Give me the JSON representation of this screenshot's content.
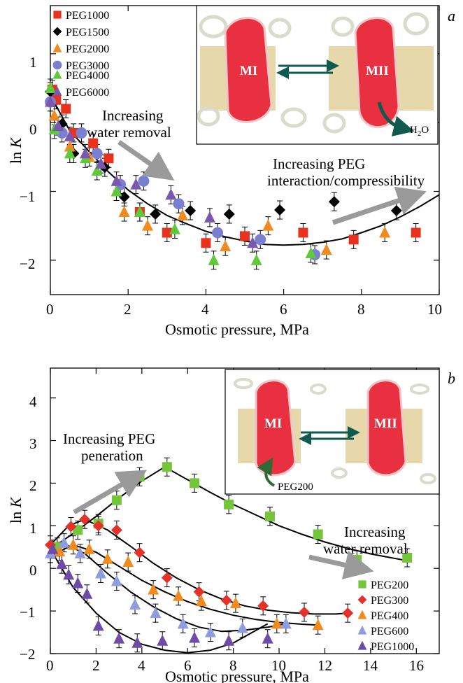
{
  "colors": {
    "red": "#e8321e",
    "black": "#000000",
    "orange": "#f28a1e",
    "purple_blue": "#7b7fd0",
    "green": "#5fc93a",
    "violet": "#7a58b0",
    "lime": "#73c63a",
    "crimson": "#e4312a",
    "sky": "#8f9de0",
    "deep_violet": "#6d4ba6",
    "arrow_grey": "#9a9a9a",
    "arrow_teal": "#0f5a4e",
    "membrane": "#d4b868",
    "protein": "#e83040"
  },
  "chart_data": [
    {
      "panel": "a",
      "type": "scatter",
      "xlabel": "Osmotic pressure, MPa",
      "ylabel": "ln K",
      "xlim": [
        0,
        10
      ],
      "ylim": [
        -2.5,
        1.7
      ],
      "xticks": [
        "0",
        "2",
        "4",
        "6",
        "8",
        "10"
      ],
      "yticks": [
        "1",
        "0",
        "−1",
        "−2"
      ],
      "legend_position": "top-left",
      "series": [
        {
          "name": "PEG1000",
          "marker": "square",
          "color": "#e8321e",
          "points": [
            [
              0.05,
              0.48
            ],
            [
              0.15,
              0.33
            ],
            [
              0.4,
              0.2
            ],
            [
              0.6,
              -0.15
            ],
            [
              1.1,
              -0.3
            ],
            [
              1.5,
              -0.52
            ],
            [
              2.3,
              -1.3
            ],
            [
              3.0,
              -1.6
            ],
            [
              4.0,
              -1.75
            ],
            [
              5.0,
              -1.65
            ],
            [
              6.5,
              -1.6
            ],
            [
              7.8,
              -1.7
            ],
            [
              9.4,
              -1.6
            ]
          ]
        },
        {
          "name": "PEG1500",
          "marker": "diamond",
          "color": "#000000",
          "points": [
            [
              0.0,
              0.45
            ],
            [
              0.3,
              -0.02
            ],
            [
              0.6,
              -0.45
            ],
            [
              1.4,
              -0.65
            ],
            [
              1.9,
              -1.08
            ],
            [
              2.7,
              -1.33
            ],
            [
              3.6,
              -1.28
            ],
            [
              4.6,
              -1.33
            ],
            [
              5.9,
              -1.27
            ],
            [
              7.3,
              -1.15
            ],
            [
              8.9,
              -1.28
            ]
          ]
        },
        {
          "name": "PEG2000",
          "marker": "triangle",
          "color": "#f28a1e",
          "points": [
            [
              0.1,
              0.1
            ],
            [
              0.5,
              -0.35
            ],
            [
              1.0,
              -0.5
            ],
            [
              1.9,
              -1.3
            ],
            [
              2.5,
              -1.5
            ],
            [
              3.4,
              -1.35
            ],
            [
              4.5,
              -1.8
            ],
            [
              5.6,
              -1.5
            ],
            [
              7.1,
              -1.85
            ],
            [
              8.6,
              -1.6
            ]
          ]
        },
        {
          "name": "PEG3000",
          "marker": "circle",
          "color": "#7b7fd0",
          "points": [
            [
              0.0,
              0.3
            ],
            [
              0.3,
              -0.15
            ],
            [
              0.8,
              -0.15
            ],
            [
              1.2,
              -0.45
            ],
            [
              1.8,
              -0.9
            ],
            [
              2.4,
              -0.85
            ],
            [
              3.3,
              -1.18
            ],
            [
              4.3,
              -1.6
            ],
            [
              5.4,
              -1.7
            ],
            [
              6.8,
              -1.92
            ]
          ]
        },
        {
          "name": "PEG4000",
          "marker": "triangle",
          "color": "#5fc93a",
          "points": [
            [
              0.0,
              0.5
            ],
            [
              0.1,
              -0.1
            ],
            [
              0.5,
              -0.45
            ],
            [
              0.9,
              -0.52
            ],
            [
              1.2,
              -0.7
            ],
            [
              1.7,
              -1.0
            ],
            [
              2.3,
              -1.3
            ],
            [
              3.2,
              -1.55
            ],
            [
              4.2,
              -2.0
            ],
            [
              5.3,
              -2.0
            ],
            [
              6.7,
              -1.9
            ]
          ]
        },
        {
          "name": "PEG6000",
          "marker": "triangle",
          "color": "#7a58b0",
          "points": [
            [
              0.0,
              0.3
            ],
            [
              0.2,
              -0.05
            ],
            [
              0.5,
              -0.2
            ],
            [
              0.9,
              -0.45
            ],
            [
              1.3,
              -0.6
            ],
            [
              1.7,
              -0.85
            ],
            [
              2.2,
              -0.9
            ],
            [
              3.1,
              -1.05
            ],
            [
              4.1,
              -1.38
            ],
            [
              5.2,
              -1.75
            ]
          ]
        }
      ],
      "fit_curve": [
        [
          0.0,
          0.4
        ],
        [
          0.5,
          -0.12
        ],
        [
          1.0,
          -0.42
        ],
        [
          1.5,
          -0.72
        ],
        [
          2.0,
          -0.98
        ],
        [
          2.5,
          -1.18
        ],
        [
          3.0,
          -1.35
        ],
        [
          3.5,
          -1.47
        ],
        [
          4.0,
          -1.58
        ],
        [
          4.5,
          -1.66
        ],
        [
          5.0,
          -1.72
        ],
        [
          5.5,
          -1.77
        ],
        [
          6.0,
          -1.78
        ],
        [
          6.5,
          -1.77
        ],
        [
          7.0,
          -1.74
        ],
        [
          7.5,
          -1.69
        ],
        [
          8.0,
          -1.6
        ],
        [
          8.5,
          -1.5
        ],
        [
          9.0,
          -1.37
        ],
        [
          9.5,
          -1.22
        ],
        [
          10.0,
          -1.05
        ]
      ],
      "annotations": {
        "water_removal": [
          "Increasing",
          "water removal"
        ],
        "peg_interaction": [
          "Increasing PEG",
          "interaction/compressibility"
        ]
      }
    },
    {
      "panel": "b",
      "type": "scatter",
      "xlabel": "Osmotic pressure, MPa",
      "ylabel": "ln K",
      "xlim": [
        0,
        17
      ],
      "ylim": [
        -2.0,
        4.7
      ],
      "xticks": [
        "0",
        "2",
        "4",
        "6",
        "8",
        "10",
        "12",
        "14",
        "16"
      ],
      "yticks": [
        "4",
        "3",
        "2",
        "1",
        "0",
        "−1",
        "−2"
      ],
      "legend_position": "bottom-right",
      "series": [
        {
          "name": "PEG200",
          "marker": "square",
          "color": "#73c63a",
          "points": [
            [
              0.3,
              0.5
            ],
            [
              1.2,
              0.9
            ],
            [
              2.1,
              1.05
            ],
            [
              2.9,
              1.6
            ],
            [
              3.9,
              2.15
            ],
            [
              5.1,
              2.38
            ],
            [
              6.3,
              2.0
            ],
            [
              7.8,
              1.5
            ],
            [
              9.6,
              1.22
            ],
            [
              11.7,
              0.8
            ],
            [
              13.4,
              0.2
            ],
            [
              15.6,
              0.25
            ]
          ]
        },
        {
          "name": "PEG300",
          "marker": "diamond",
          "color": "#e4312a",
          "points": [
            [
              0.0,
              0.55
            ],
            [
              0.9,
              0.98
            ],
            [
              1.5,
              1.15
            ],
            [
              2.1,
              1.0
            ],
            [
              2.9,
              0.9
            ],
            [
              3.9,
              0.37
            ],
            [
              5.1,
              -0.22
            ],
            [
              6.5,
              -0.55
            ],
            [
              7.7,
              -0.75
            ],
            [
              9.3,
              -0.88
            ],
            [
              11.1,
              -1.03
            ],
            [
              13.0,
              -1.05
            ]
          ]
        },
        {
          "name": "PEG400",
          "marker": "triangle",
          "color": "#f28a1e",
          "points": [
            [
              0.4,
              0.4
            ],
            [
              1.0,
              0.55
            ],
            [
              1.7,
              0.45
            ],
            [
              2.5,
              0.22
            ],
            [
              3.4,
              0.15
            ],
            [
              4.5,
              -0.5
            ],
            [
              5.6,
              -0.65
            ],
            [
              6.6,
              -0.77
            ],
            [
              8.1,
              -0.82
            ],
            [
              9.9,
              -1.3
            ],
            [
              11.7,
              -1.33
            ]
          ]
        },
        {
          "name": "PEG600",
          "marker": "triangle",
          "color": "#8f9de0",
          "points": [
            [
              0.0,
              0.35
            ],
            [
              0.6,
              0.6
            ],
            [
              1.3,
              0.35
            ],
            [
              2.2,
              -0.12
            ],
            [
              2.9,
              -0.3
            ],
            [
              3.7,
              -0.85
            ],
            [
              4.6,
              -1.05
            ],
            [
              5.8,
              -1.3
            ],
            [
              7.0,
              -1.5
            ],
            [
              8.4,
              -1.4
            ],
            [
              10.3,
              -1.3
            ]
          ]
        },
        {
          "name": "PEG1000",
          "marker": "triangle",
          "color": "#6d4ba6",
          "points": [
            [
              0.1,
              0.45
            ],
            [
              0.5,
              0.1
            ],
            [
              0.8,
              -0.15
            ],
            [
              1.2,
              -0.35
            ],
            [
              1.6,
              -0.6
            ],
            [
              2.1,
              -1.35
            ],
            [
              3.0,
              -1.65
            ],
            [
              3.8,
              -1.75
            ],
            [
              4.9,
              -1.7
            ],
            [
              6.3,
              -1.63
            ],
            [
              7.8,
              -1.7
            ],
            [
              9.5,
              -1.65
            ]
          ]
        }
      ],
      "fit_curves": [
        {
          "series": "PEG200",
          "points": [
            [
              0.0,
              0.45
            ],
            [
              1.0,
              0.82
            ],
            [
              2.0,
              1.22
            ],
            [
              3.0,
              1.65
            ],
            [
              4.0,
              2.05
            ],
            [
              5.0,
              2.38
            ],
            [
              6.0,
              2.08
            ],
            [
              7.0,
              1.78
            ],
            [
              8.0,
              1.5
            ],
            [
              9.0,
              1.25
            ],
            [
              10.0,
              1.0
            ],
            [
              11.0,
              0.8
            ],
            [
              12.0,
              0.62
            ],
            [
              13.0,
              0.47
            ],
            [
              14.0,
              0.34
            ],
            [
              15.0,
              0.24
            ],
            [
              15.6,
              0.18
            ]
          ]
        },
        {
          "series": "PEG300",
          "points": [
            [
              0.0,
              0.55
            ],
            [
              0.8,
              1.0
            ],
            [
              1.5,
              1.15
            ],
            [
              2.5,
              0.9
            ],
            [
              3.5,
              0.52
            ],
            [
              4.5,
              0.12
            ],
            [
              5.5,
              -0.22
            ],
            [
              6.5,
              -0.5
            ],
            [
              7.5,
              -0.72
            ],
            [
              8.5,
              -0.88
            ],
            [
              9.5,
              -0.98
            ],
            [
              10.5,
              -1.04
            ],
            [
              11.5,
              -1.07
            ],
            [
              12.5,
              -1.07
            ],
            [
              13.0,
              -1.05
            ]
          ]
        },
        {
          "series": "PEG400",
          "points": [
            [
              0.0,
              0.3
            ],
            [
              1.0,
              0.55
            ],
            [
              2.0,
              0.38
            ],
            [
              3.0,
              0.05
            ],
            [
              4.0,
              -0.28
            ],
            [
              5.0,
              -0.55
            ],
            [
              6.0,
              -0.78
            ],
            [
              7.0,
              -0.96
            ],
            [
              8.0,
              -1.1
            ],
            [
              9.0,
              -1.2
            ],
            [
              10.0,
              -1.27
            ],
            [
              11.0,
              -1.31
            ],
            [
              11.7,
              -1.33
            ]
          ]
        },
        {
          "series": "PEG600",
          "points": [
            [
              0.0,
              0.35
            ],
            [
              0.6,
              0.58
            ],
            [
              1.5,
              0.35
            ],
            [
              2.5,
              -0.12
            ],
            [
              3.5,
              -0.55
            ],
            [
              4.5,
              -0.9
            ],
            [
              5.5,
              -1.18
            ],
            [
              6.5,
              -1.38
            ],
            [
              7.5,
              -1.48
            ],
            [
              8.5,
              -1.45
            ],
            [
              9.5,
              -1.38
            ],
            [
              10.3,
              -1.3
            ]
          ]
        },
        {
          "series": "PEG1000",
          "points": [
            [
              0.0,
              0.45
            ],
            [
              1.0,
              -0.45
            ],
            [
              2.0,
              -1.05
            ],
            [
              3.0,
              -1.5
            ],
            [
              4.0,
              -1.78
            ],
            [
              5.0,
              -1.92
            ],
            [
              6.0,
              -1.98
            ],
            [
              7.0,
              -1.92
            ],
            [
              8.0,
              -1.75
            ],
            [
              9.0,
              -1.45
            ],
            [
              9.5,
              -1.3
            ]
          ]
        }
      ],
      "annotations": {
        "peg_penetration": [
          "Increasing PEG",
          "peneration"
        ],
        "water_removal": [
          "Increasing",
          "water removal"
        ]
      }
    }
  ],
  "inset_a": {
    "state_left": "MI",
    "state_right": "MII",
    "product_prefix": "H",
    "product_subscript": "2",
    "product_suffix": "O"
  },
  "inset_b": {
    "state_left": "MI",
    "state_right": "MII",
    "ligand": "PEG200"
  },
  "panel_letters": {
    "a": "a",
    "b": "b"
  },
  "axis_symbol": {
    "ln": "ln ",
    "K": "K"
  }
}
